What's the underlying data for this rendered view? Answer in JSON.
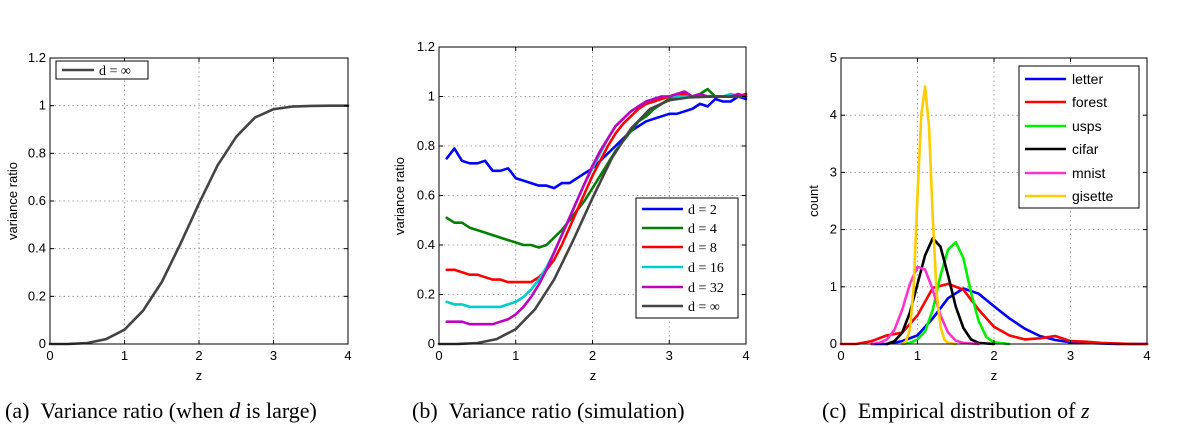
{
  "chart_data": [
    {
      "type": "line",
      "caption_label": "(a)",
      "caption_text": "Variance ratio (when ",
      "caption_var": "d",
      "caption_suffix": " is large)",
      "xlabel": "z",
      "ylabel": "variance ratio",
      "xlim": [
        0,
        4
      ],
      "ylim": [
        0,
        1.2
      ],
      "xticks": [
        0,
        1,
        2,
        3,
        4
      ],
      "yticks": [
        0,
        0.2,
        0.4,
        0.6,
        0.8,
        1,
        1.2
      ],
      "ytick_labels": [
        "0",
        "0.2",
        "0.4",
        "0.6",
        "0.8",
        "1",
        "1.2"
      ],
      "grid": true,
      "legend_position": "top-left",
      "series": [
        {
          "name": "d = ∞",
          "color": "#444444",
          "x": [
            0,
            0.25,
            0.5,
            0.75,
            1.0,
            1.25,
            1.5,
            1.75,
            2.0,
            2.25,
            2.5,
            2.75,
            3.0,
            3.25,
            3.5,
            3.75,
            4.0
          ],
          "y": [
            0,
            0.0005,
            0.004,
            0.02,
            0.06,
            0.14,
            0.26,
            0.42,
            0.59,
            0.75,
            0.87,
            0.95,
            0.985,
            0.996,
            0.999,
            1.0,
            1.0
          ]
        }
      ]
    },
    {
      "type": "line",
      "caption_label": "(b)",
      "caption_text": "Variance ratio (simulation)",
      "xlabel": "z",
      "ylabel": "variance ratio",
      "xlim": [
        0,
        4
      ],
      "ylim": [
        0,
        1.2
      ],
      "xticks": [
        0,
        1,
        2,
        3,
        4
      ],
      "yticks": [
        0,
        0.2,
        0.4,
        0.6,
        0.8,
        1,
        1.2
      ],
      "ytick_labels": [
        "0",
        "0.2",
        "0.4",
        "0.6",
        "0.8",
        "1",
        "1.2"
      ],
      "grid": true,
      "legend_position": "bottom-right",
      "series": [
        {
          "name": "d = 2",
          "color": "#0000ff",
          "x": [
            0.1,
            0.2,
            0.3,
            0.4,
            0.5,
            0.6,
            0.7,
            0.8,
            0.9,
            1.0,
            1.1,
            1.2,
            1.3,
            1.4,
            1.5,
            1.6,
            1.7,
            1.8,
            1.9,
            2.0,
            2.1,
            2.2,
            2.3,
            2.4,
            2.5,
            2.6,
            2.7,
            2.8,
            2.9,
            3.0,
            3.1,
            3.2,
            3.3,
            3.4,
            3.5,
            3.6,
            3.7,
            3.8,
            3.9,
            4.0
          ],
          "y": [
            0.75,
            0.79,
            0.74,
            0.73,
            0.73,
            0.74,
            0.7,
            0.7,
            0.71,
            0.67,
            0.66,
            0.65,
            0.64,
            0.64,
            0.63,
            0.65,
            0.65,
            0.67,
            0.69,
            0.71,
            0.74,
            0.77,
            0.8,
            0.83,
            0.86,
            0.88,
            0.9,
            0.91,
            0.92,
            0.93,
            0.93,
            0.94,
            0.95,
            0.97,
            0.96,
            0.99,
            0.98,
            0.98,
            1.0,
            0.99
          ]
        },
        {
          "name": "d = 4",
          "color": "#008000",
          "x": [
            0.1,
            0.2,
            0.3,
            0.4,
            0.5,
            0.6,
            0.7,
            0.8,
            0.9,
            1.0,
            1.1,
            1.2,
            1.3,
            1.4,
            1.5,
            1.6,
            1.7,
            1.8,
            1.9,
            2.0,
            2.1,
            2.2,
            2.3,
            2.4,
            2.5,
            2.6,
            2.7,
            2.8,
            2.9,
            3.0,
            3.1,
            3.2,
            3.3,
            3.4,
            3.5,
            3.6,
            3.7,
            3.8,
            3.9,
            4.0
          ],
          "y": [
            0.51,
            0.49,
            0.49,
            0.47,
            0.46,
            0.45,
            0.44,
            0.43,
            0.42,
            0.41,
            0.4,
            0.4,
            0.39,
            0.4,
            0.43,
            0.46,
            0.5,
            0.54,
            0.58,
            0.63,
            0.68,
            0.73,
            0.78,
            0.82,
            0.86,
            0.9,
            0.92,
            0.95,
            0.97,
            0.99,
            1.0,
            1.01,
            1.0,
            1.01,
            1.03,
            1.0,
            1.0,
            1.0,
            1.0,
            1.01
          ]
        },
        {
          "name": "d = 8",
          "color": "#ff0000",
          "x": [
            0.1,
            0.2,
            0.3,
            0.4,
            0.5,
            0.6,
            0.7,
            0.8,
            0.9,
            1.0,
            1.1,
            1.2,
            1.3,
            1.4,
            1.5,
            1.6,
            1.7,
            1.8,
            1.9,
            2.0,
            2.1,
            2.2,
            2.3,
            2.4,
            2.5,
            2.6,
            2.7,
            2.8,
            2.9,
            3.0,
            3.1,
            3.2,
            3.3,
            3.4,
            3.5,
            3.6,
            3.7,
            3.8,
            3.9,
            4.0
          ],
          "y": [
            0.3,
            0.3,
            0.29,
            0.28,
            0.28,
            0.27,
            0.26,
            0.26,
            0.25,
            0.25,
            0.25,
            0.25,
            0.27,
            0.3,
            0.34,
            0.4,
            0.47,
            0.54,
            0.61,
            0.68,
            0.74,
            0.8,
            0.85,
            0.89,
            0.92,
            0.95,
            0.97,
            0.98,
            0.99,
            1.0,
            1.01,
            1.01,
            1.0,
            1.0,
            1.0,
            1.0,
            1.0,
            1.0,
            1.0,
            1.01
          ]
        },
        {
          "name": "d = 16",
          "color": "#00cccc",
          "x": [
            0.1,
            0.2,
            0.3,
            0.4,
            0.5,
            0.6,
            0.7,
            0.8,
            0.9,
            1.0,
            1.1,
            1.2,
            1.3,
            1.4,
            1.5,
            1.6,
            1.7,
            1.8,
            1.9,
            2.0,
            2.1,
            2.2,
            2.3,
            2.4,
            2.5,
            2.6,
            2.7,
            2.8,
            2.9,
            3.0,
            3.1,
            3.2,
            3.3,
            3.4,
            3.5,
            3.6,
            3.7,
            3.8,
            3.9,
            4.0
          ],
          "y": [
            0.17,
            0.16,
            0.16,
            0.15,
            0.15,
            0.15,
            0.15,
            0.15,
            0.16,
            0.17,
            0.19,
            0.22,
            0.26,
            0.31,
            0.37,
            0.44,
            0.51,
            0.58,
            0.65,
            0.71,
            0.77,
            0.83,
            0.88,
            0.91,
            0.94,
            0.96,
            0.98,
            0.99,
            1.0,
            1.0,
            1.0,
            1.0,
            1.0,
            1.0,
            1.0,
            1.0,
            1.0,
            1.01,
            1.0,
            1.0
          ]
        },
        {
          "name": "d = 32",
          "color": "#bf00bf",
          "x": [
            0.1,
            0.2,
            0.3,
            0.4,
            0.5,
            0.6,
            0.7,
            0.8,
            0.9,
            1.0,
            1.1,
            1.2,
            1.3,
            1.4,
            1.5,
            1.6,
            1.7,
            1.8,
            1.9,
            2.0,
            2.1,
            2.2,
            2.3,
            2.4,
            2.5,
            2.6,
            2.7,
            2.8,
            2.9,
            3.0,
            3.1,
            3.2,
            3.3,
            3.4,
            3.5,
            3.6,
            3.7,
            3.8,
            3.9,
            4.0
          ],
          "y": [
            0.09,
            0.09,
            0.09,
            0.08,
            0.08,
            0.08,
            0.08,
            0.09,
            0.1,
            0.12,
            0.15,
            0.19,
            0.24,
            0.3,
            0.37,
            0.44,
            0.51,
            0.58,
            0.65,
            0.72,
            0.78,
            0.83,
            0.88,
            0.91,
            0.94,
            0.96,
            0.98,
            0.99,
            1.0,
            1.0,
            1.01,
            1.02,
            1.0,
            1.01,
            1.0,
            1.0,
            1.0,
            1.0,
            1.01,
            1.0
          ]
        },
        {
          "name": "d = ∞",
          "color": "#444444",
          "x": [
            0.0,
            0.25,
            0.5,
            0.75,
            1.0,
            1.25,
            1.5,
            1.75,
            2.0,
            2.25,
            2.5,
            2.75,
            3.0,
            3.25,
            3.5,
            3.75,
            4.0
          ],
          "y": [
            0,
            0.0005,
            0.004,
            0.02,
            0.06,
            0.14,
            0.26,
            0.42,
            0.59,
            0.75,
            0.87,
            0.95,
            0.985,
            0.996,
            0.999,
            1.0,
            1.0
          ]
        }
      ]
    },
    {
      "type": "line",
      "caption_label": "(c)",
      "caption_text": "Empirical distribution of ",
      "caption_var": "z",
      "caption_suffix": "",
      "xlabel": "z",
      "ylabel": "count",
      "xlim": [
        0,
        4
      ],
      "ylim": [
        0,
        5
      ],
      "xticks": [
        0,
        1,
        2,
        3,
        4
      ],
      "yticks": [
        0,
        1,
        2,
        3,
        4,
        5
      ],
      "ytick_labels": [
        "0",
        "1",
        "2",
        "3",
        "4",
        "5"
      ],
      "grid": true,
      "legend_position": "top-right",
      "series": [
        {
          "name": "letter",
          "color": "#0000ff",
          "x": [
            0.4,
            0.6,
            0.8,
            1.0,
            1.2,
            1.4,
            1.6,
            1.8,
            2.0,
            2.2,
            2.4,
            2.6,
            2.8,
            3.0,
            3.2,
            3.4,
            3.6,
            3.8,
            4.0
          ],
          "y": [
            0.0,
            0.0,
            0.05,
            0.15,
            0.45,
            0.8,
            0.97,
            0.88,
            0.66,
            0.45,
            0.27,
            0.14,
            0.07,
            0.03,
            0.02,
            0.01,
            0.0,
            0.0,
            0.0
          ]
        },
        {
          "name": "forest",
          "color": "#ff0000",
          "x": [
            0.0,
            0.2,
            0.4,
            0.6,
            0.8,
            1.0,
            1.2,
            1.4,
            1.6,
            1.8,
            2.0,
            2.2,
            2.4,
            2.6,
            2.8,
            3.0,
            3.2,
            3.4,
            3.6,
            3.8,
            4.0
          ],
          "y": [
            0.0,
            0.0,
            0.05,
            0.15,
            0.2,
            0.5,
            0.98,
            1.05,
            0.95,
            0.6,
            0.3,
            0.15,
            0.08,
            0.1,
            0.14,
            0.05,
            0.04,
            0.02,
            0.01,
            0.0,
            0.0
          ]
        },
        {
          "name": "usps",
          "color": "#00ee00",
          "x": [
            0.8,
            0.9,
            1.0,
            1.1,
            1.2,
            1.3,
            1.4,
            1.5,
            1.6,
            1.7,
            1.8,
            1.9,
            2.0,
            2.2
          ],
          "y": [
            0.0,
            0.02,
            0.08,
            0.22,
            0.6,
            1.2,
            1.65,
            1.78,
            1.5,
            0.9,
            0.4,
            0.12,
            0.03,
            0.0
          ]
        },
        {
          "name": "cifar",
          "color": "#000000",
          "x": [
            0.6,
            0.7,
            0.8,
            0.9,
            1.0,
            1.1,
            1.2,
            1.3,
            1.4,
            1.5,
            1.6,
            1.7,
            1.8,
            2.0
          ],
          "y": [
            0.0,
            0.05,
            0.2,
            0.55,
            1.05,
            1.55,
            1.85,
            1.7,
            1.2,
            0.65,
            0.28,
            0.08,
            0.02,
            0.0
          ]
        },
        {
          "name": "mnist",
          "color": "#ff33cc",
          "x": [
            0.4,
            0.5,
            0.6,
            0.7,
            0.8,
            0.9,
            1.0,
            1.1,
            1.2,
            1.3,
            1.4,
            1.5,
            1.6,
            1.8
          ],
          "y": [
            0.0,
            0.02,
            0.08,
            0.25,
            0.6,
            1.05,
            1.35,
            1.3,
            0.95,
            0.5,
            0.2,
            0.06,
            0.02,
            0.0
          ]
        },
        {
          "name": "gisette",
          "color": "#ffcc00",
          "x": [
            0.8,
            0.85,
            0.9,
            0.95,
            1.0,
            1.05,
            1.1,
            1.15,
            1.2,
            1.25,
            1.3,
            1.35,
            1.4,
            1.5
          ],
          "y": [
            0.0,
            0.05,
            0.25,
            1.0,
            2.6,
            4.0,
            4.5,
            3.8,
            2.2,
            0.9,
            0.3,
            0.08,
            0.02,
            0.0
          ]
        }
      ]
    }
  ]
}
